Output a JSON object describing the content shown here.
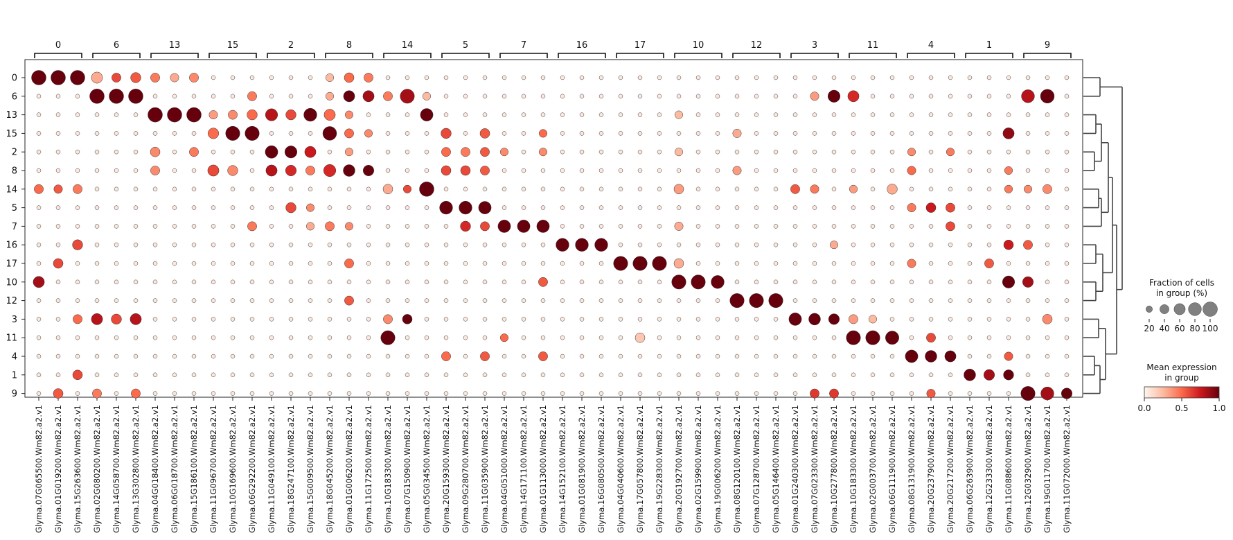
{
  "chart_data": {
    "type": "dotplot",
    "group_order": [
      "0",
      "6",
      "13",
      "15",
      "2",
      "8",
      "14",
      "5",
      "7",
      "16",
      "17",
      "10",
      "12",
      "3",
      "11",
      "4",
      "1",
      "9"
    ],
    "gene_groups": [
      {
        "label": "0",
        "genes": [
          "Glyma.07G065500.Wm82.a2.v1",
          "Glyma.01G019200.Wm82.a2.v1",
          "Glyma.15G263600.Wm82.a2.v1"
        ]
      },
      {
        "label": "6",
        "genes": [
          "Glyma.02G080200.Wm82.a2.v1",
          "Glyma.14G058700.Wm82.a2.v1",
          "Glyma.13G302800.Wm82.a2.v1"
        ]
      },
      {
        "label": "13",
        "genes": [
          "Glyma.04G018400.Wm82.a2.v1",
          "Glyma.06G018700.Wm82.a2.v1",
          "Glyma.15G186100.Wm82.a2.v1"
        ]
      },
      {
        "label": "15",
        "genes": [
          "Glyma.11G096700.Wm82.a2.v1",
          "Glyma.10G169600.Wm82.a2.v1",
          "Glyma.06G292200.Wm82.a2.v1"
        ]
      },
      {
        "label": "2",
        "genes": [
          "Glyma.11G049100.Wm82.a2.v1",
          "Glyma.18G247100.Wm82.a2.v1",
          "Glyma.15G009500.Wm82.a2.v1"
        ]
      },
      {
        "label": "8",
        "genes": [
          "Glyma.18G045200.Wm82.a2.v1",
          "Glyma.01G006200.Wm82.a2.v1",
          "Glyma.11G172500.Wm82.a2.v1"
        ]
      },
      {
        "label": "14",
        "genes": [
          "Glyma.10G183300.Wm82.a2.v1",
          "Glyma.07G150900.Wm82.a2.v1",
          "Glyma.05G034500.Wm82.a2.v1"
        ]
      },
      {
        "label": "5",
        "genes": [
          "Glyma.20G159300.Wm82.a2.v1",
          "Glyma.09G280700.Wm82.a2.v1",
          "Glyma.11G035900.Wm82.a2.v1"
        ]
      },
      {
        "label": "7",
        "genes": [
          "Glyma.04G051000.Wm82.a2.v1",
          "Glyma.14G171100.Wm82.a2.v1",
          "Glyma.01G113000.Wm82.a2.v1"
        ]
      },
      {
        "label": "16",
        "genes": [
          "Glyma.14G152100.Wm82.a2.v1",
          "Glyma.01G081900.Wm82.a2.v1",
          "Glyma.16G080500.Wm82.a2.v1"
        ]
      },
      {
        "label": "17",
        "genes": [
          "Glyma.04G040600.Wm82.a2.v1",
          "Glyma.17G057800.Wm82.a2.v1",
          "Glyma.19G228300.Wm82.a2.v1"
        ]
      },
      {
        "label": "10",
        "genes": [
          "Glyma.20G192700.Wm82.a2.v1",
          "Glyma.02G159900.Wm82.a2.v1",
          "Glyma.19G006200.Wm82.a2.v1"
        ]
      },
      {
        "label": "12",
        "genes": [
          "Glyma.08G120100.Wm82.a2.v1",
          "Glyma.07G128700.Wm82.a2.v1",
          "Glyma.05G146400.Wm82.a2.v1"
        ]
      },
      {
        "label": "3",
        "genes": [
          "Glyma.01G240300.Wm82.a2.v1",
          "Glyma.07G023300.Wm82.a2.v1",
          "Glyma.10G277800.Wm82.a2.v1"
        ]
      },
      {
        "label": "11",
        "genes": [
          "Glyma.10G183300.Wm82.a2.v1",
          "Glyma.02G003700.Wm82.a2.v1",
          "Glyma.06G111900.Wm82.a2.v1"
        ]
      },
      {
        "label": "4",
        "genes": [
          "Glyma.08G131900.Wm82.a2.v1",
          "Glyma.20G237900.Wm82.a2.v1",
          "Glyma.20G217200.Wm82.a2.v1"
        ]
      },
      {
        "label": "1",
        "genes": [
          "Glyma.06G263900.Wm82.a2.v1",
          "Glyma.12G233300.Wm82.a2.v1",
          "Glyma.11G088600.Wm82.a2.v1"
        ]
      },
      {
        "label": "9",
        "genes": [
          "Glyma.12G032900.Wm82.a2.v1",
          "Glyma.19G011700.Wm82.a2.v1",
          "Glyma.11G072000.Wm82.a2.v1"
        ]
      }
    ],
    "size_legend": {
      "title": "Fraction of cells\nin group (%)",
      "ticks": [
        "20",
        "40",
        "60",
        "80",
        "100"
      ],
      "values": [
        20,
        40,
        60,
        80,
        100
      ]
    },
    "color_legend": {
      "title": "Mean expression\nin group",
      "ticks": [
        "0.0",
        "0.5",
        "1.0"
      ],
      "range": [
        0,
        1
      ],
      "colormap": "Reds"
    },
    "marker_expression_default": {
      "fraction": 100,
      "expression": 1.0
    },
    "background": {
      "fraction": 8,
      "expression": 0.06
    },
    "highlights": [
      [
        "0",
        3,
        60,
        0.3
      ],
      [
        "0",
        4,
        40,
        0.6
      ],
      [
        "0",
        5,
        50,
        0.55
      ],
      [
        "0",
        6,
        40,
        0.45
      ],
      [
        "0",
        7,
        35,
        0.3
      ],
      [
        "0",
        8,
        40,
        0.4
      ],
      [
        "0",
        15,
        30,
        0.25
      ],
      [
        "0",
        16,
        45,
        0.5
      ],
      [
        "0",
        17,
        40,
        0.45
      ],
      [
        "6",
        15,
        30,
        0.3
      ],
      [
        "6",
        16,
        60,
        1.0
      ],
      [
        "6",
        17,
        60,
        0.85
      ],
      [
        "6",
        18,
        40,
        0.45
      ],
      [
        "6",
        19,
        95,
        0.85
      ],
      [
        "6",
        20,
        30,
        0.25
      ],
      [
        "6",
        40,
        35,
        0.35
      ],
      [
        "6",
        41,
        70,
        1.0
      ],
      [
        "6",
        42,
        60,
        0.7
      ],
      [
        "6",
        51,
        80,
        0.8
      ],
      [
        "6",
        52,
        90,
        1.0
      ],
      [
        "6",
        11,
        40,
        0.45
      ],
      [
        "13",
        9,
        35,
        0.35
      ],
      [
        "13",
        10,
        40,
        0.4
      ],
      [
        "13",
        11,
        50,
        0.5
      ],
      [
        "13",
        12,
        70,
        0.8
      ],
      [
        "13",
        13,
        50,
        0.6
      ],
      [
        "13",
        14,
        80,
        1.0
      ],
      [
        "13",
        15,
        60,
        0.5
      ],
      [
        "13",
        16,
        30,
        0.4
      ],
      [
        "13",
        20,
        75,
        1.0
      ],
      [
        "13",
        33,
        30,
        0.25
      ],
      [
        "15",
        9,
        55,
        0.5
      ],
      [
        "15",
        10,
        95,
        1.0
      ],
      [
        "15",
        11,
        95,
        1.0
      ],
      [
        "15",
        15,
        90,
        1.0
      ],
      [
        "15",
        16,
        40,
        0.5
      ],
      [
        "15",
        17,
        30,
        0.4
      ],
      [
        "15",
        21,
        50,
        0.6
      ],
      [
        "15",
        23,
        45,
        0.55
      ],
      [
        "15",
        26,
        30,
        0.5
      ],
      [
        "15",
        36,
        35,
        0.3
      ],
      [
        "15",
        50,
        60,
        0.9
      ],
      [
        "2",
        6,
        45,
        0.4
      ],
      [
        "2",
        8,
        40,
        0.45
      ],
      [
        "2",
        12,
        75,
        1.0
      ],
      [
        "2",
        13,
        70,
        1.0
      ],
      [
        "2",
        14,
        60,
        0.75
      ],
      [
        "2",
        16,
        30,
        0.35
      ],
      [
        "2",
        21,
        40,
        0.5
      ],
      [
        "2",
        22,
        40,
        0.45
      ],
      [
        "2",
        23,
        40,
        0.55
      ],
      [
        "2",
        24,
        30,
        0.4
      ],
      [
        "2",
        26,
        30,
        0.4
      ],
      [
        "2",
        33,
        30,
        0.25
      ],
      [
        "2",
        45,
        30,
        0.4
      ],
      [
        "2",
        47,
        30,
        0.45
      ],
      [
        "8",
        6,
        40,
        0.4
      ],
      [
        "8",
        9,
        60,
        0.6
      ],
      [
        "8",
        10,
        50,
        0.4
      ],
      [
        "8",
        12,
        60,
        0.8
      ],
      [
        "8",
        13,
        55,
        0.7
      ],
      [
        "8",
        14,
        40,
        0.45
      ],
      [
        "8",
        15,
        70,
        0.7
      ],
      [
        "8",
        16,
        65,
        1.0
      ],
      [
        "8",
        17,
        55,
        1.0
      ],
      [
        "8",
        21,
        45,
        0.6
      ],
      [
        "8",
        22,
        45,
        0.6
      ],
      [
        "8",
        23,
        40,
        0.55
      ],
      [
        "8",
        36,
        35,
        0.35
      ],
      [
        "8",
        45,
        35,
        0.5
      ],
      [
        "8",
        50,
        30,
        0.45
      ],
      [
        "14",
        0,
        40,
        0.5
      ],
      [
        "14",
        1,
        35,
        0.55
      ],
      [
        "14",
        2,
        40,
        0.45
      ],
      [
        "14",
        18,
        45,
        0.3
      ],
      [
        "14",
        19,
        30,
        0.6
      ],
      [
        "14",
        33,
        45,
        0.35
      ],
      [
        "14",
        39,
        40,
        0.55
      ],
      [
        "14",
        40,
        35,
        0.45
      ],
      [
        "14",
        42,
        30,
        0.35
      ],
      [
        "14",
        44,
        50,
        0.3
      ],
      [
        "14",
        50,
        30,
        0.45
      ],
      [
        "14",
        51,
        30,
        0.4
      ],
      [
        "14",
        52,
        40,
        0.4
      ],
      [
        "5",
        13,
        50,
        0.6
      ],
      [
        "5",
        14,
        30,
        0.4
      ],
      [
        "5",
        21,
        80,
        1.0
      ],
      [
        "5",
        22,
        80,
        1.0
      ],
      [
        "5",
        23,
        75,
        1.0
      ],
      [
        "5",
        45,
        35,
        0.45
      ],
      [
        "5",
        46,
        45,
        0.75
      ],
      [
        "5",
        47,
        40,
        0.6
      ],
      [
        "7",
        11,
        40,
        0.45
      ],
      [
        "7",
        14,
        30,
        0.3
      ],
      [
        "7",
        15,
        40,
        0.45
      ],
      [
        "7",
        16,
        30,
        0.4
      ],
      [
        "7",
        22,
        50,
        0.7
      ],
      [
        "7",
        23,
        40,
        0.6
      ],
      [
        "7",
        24,
        75,
        1.0
      ],
      [
        "7",
        25,
        75,
        1.0
      ],
      [
        "7",
        26,
        75,
        1.0
      ],
      [
        "7",
        33,
        35,
        0.3
      ],
      [
        "7",
        47,
        40,
        0.6
      ],
      [
        "16",
        2,
        50,
        0.6
      ],
      [
        "16",
        27,
        80,
        1.0
      ],
      [
        "16",
        28,
        80,
        1.0
      ],
      [
        "16",
        29,
        80,
        1.0
      ],
      [
        "16",
        41,
        30,
        0.3
      ],
      [
        "16",
        50,
        45,
        0.75
      ],
      [
        "16",
        51,
        40,
        0.55
      ],
      [
        "17",
        1,
        45,
        0.6
      ],
      [
        "17",
        16,
        40,
        0.5
      ],
      [
        "17",
        30,
        95,
        1.0
      ],
      [
        "17",
        31,
        95,
        1.0
      ],
      [
        "17",
        32,
        95,
        1.0
      ],
      [
        "17",
        33,
        45,
        0.3
      ],
      [
        "17",
        45,
        35,
        0.45
      ],
      [
        "17",
        49,
        40,
        0.55
      ],
      [
        "10",
        0,
        60,
        0.85
      ],
      [
        "10",
        26,
        40,
        0.55
      ],
      [
        "10",
        33,
        95,
        1.0
      ],
      [
        "10",
        34,
        95,
        1.0
      ],
      [
        "10",
        35,
        80,
        1.0
      ],
      [
        "10",
        50,
        70,
        1.0
      ],
      [
        "10",
        51,
        55,
        0.85
      ],
      [
        "12",
        16,
        40,
        0.55
      ],
      [
        "12",
        36,
        95,
        1.0
      ],
      [
        "12",
        37,
        95,
        1.0
      ],
      [
        "12",
        38,
        95,
        1.0
      ],
      [
        "3",
        2,
        40,
        0.5
      ],
      [
        "3",
        3,
        60,
        0.8
      ],
      [
        "3",
        4,
        50,
        0.6
      ],
      [
        "3",
        5,
        60,
        0.8
      ],
      [
        "3",
        18,
        40,
        0.4
      ],
      [
        "3",
        19,
        45,
        1.0
      ],
      [
        "3",
        39,
        75,
        1.0
      ],
      [
        "3",
        40,
        65,
        1.0
      ],
      [
        "3",
        41,
        55,
        1.0
      ],
      [
        "3",
        42,
        40,
        0.35
      ],
      [
        "3",
        43,
        30,
        0.25
      ],
      [
        "3",
        52,
        45,
        0.4
      ],
      [
        "11",
        18,
        95,
        1.0
      ],
      [
        "11",
        24,
        30,
        0.5
      ],
      [
        "11",
        31,
        45,
        0.2
      ],
      [
        "11",
        42,
        95,
        1.0
      ],
      [
        "11",
        43,
        95,
        1.0
      ],
      [
        "11",
        44,
        85,
        1.0
      ],
      [
        "11",
        46,
        40,
        0.6
      ],
      [
        "4",
        21,
        40,
        0.5
      ],
      [
        "4",
        23,
        40,
        0.55
      ],
      [
        "4",
        26,
        40,
        0.55
      ],
      [
        "4",
        45,
        75,
        1.0
      ],
      [
        "4",
        46,
        65,
        1.0
      ],
      [
        "4",
        47,
        60,
        1.0
      ],
      [
        "4",
        50,
        35,
        0.55
      ],
      [
        "1",
        2,
        45,
        0.6
      ],
      [
        "1",
        48,
        65,
        1.0
      ],
      [
        "1",
        49,
        55,
        0.85
      ],
      [
        "1",
        50,
        50,
        1.0
      ],
      [
        "9",
        1,
        45,
        0.55
      ],
      [
        "9",
        3,
        40,
        0.45
      ],
      [
        "9",
        5,
        40,
        0.5
      ],
      [
        "9",
        40,
        40,
        0.65
      ],
      [
        "9",
        41,
        40,
        0.65
      ],
      [
        "9",
        46,
        35,
        0.55
      ],
      [
        "9",
        51,
        95,
        1.0
      ],
      [
        "9",
        52,
        80,
        0.85
      ],
      [
        "9",
        53,
        55,
        1.0
      ]
    ]
  }
}
